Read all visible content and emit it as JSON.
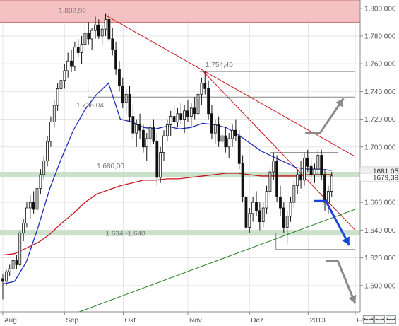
{
  "chart_data": {
    "type": "candlestick",
    "title": "",
    "xlabel": "",
    "ylabel": "",
    "ylim": [
      1581,
      1806
    ],
    "y_ticks": [
      "1.800,000",
      "1.780,000",
      "1.760,000",
      "1.740,000",
      "1.720,000",
      "1.700,000",
      "1.680,000",
      "1.660,000",
      "1.640,000",
      "1.620,000",
      "1.600,000"
    ],
    "y_tick_values": [
      1800,
      1780,
      1760,
      1740,
      1720,
      1700,
      1680,
      1660,
      1640,
      1620,
      1600
    ],
    "x_range": [
      0,
      120
    ],
    "x_ticks": [
      {
        "label": "Aug",
        "x": 0
      },
      {
        "label": "Sep",
        "x": 21
      },
      {
        "label": "Okt",
        "x": 41
      },
      {
        "label": "Nov",
        "x": 63
      },
      {
        "label": "Dez",
        "x": 84
      },
      {
        "label": "2013",
        "x": 104
      },
      {
        "label": "Feb",
        "x": 120
      }
    ],
    "grid": true,
    "current_price_labels": [
      "1681,05",
      "1679,39"
    ],
    "current_price_values": [
      1681.05,
      1679.39
    ],
    "colors": {
      "candle": "#111111",
      "moving_average_blue": "#1f2db8",
      "moving_average_red": "#c8161c",
      "resistance_lines": "#c8161c",
      "support_line": "#1a7a1a",
      "zone_top": "#f4c2c2",
      "zone_green": "#c9e0c9",
      "arrow_up": "#8a8a8a",
      "arrow_down_blue": "#1a44d8",
      "arrow_down_gray": "#8a8a8a"
    },
    "zones": [
      {
        "label": "1.802,92",
        "y_from": 1790,
        "y_to": 1806,
        "color": "#f4c2c2"
      },
      {
        "label": "1.680,00",
        "y_from": 1678,
        "y_to": 1682,
        "color": "#c9e0c9"
      },
      {
        "label": "1.634 -1.640",
        "y_from": 1636,
        "y_to": 1640,
        "color": "#c9e0c9"
      }
    ],
    "level_lines": [
      {
        "label": "1.754,40",
        "y": 1754.4,
        "x_from": 67,
        "x_to": 120
      },
      {
        "label": "1.736,04",
        "y": 1736,
        "x_from": 29,
        "x_to": 120
      },
      {
        "label": "",
        "y": 1696,
        "x_from": 91,
        "x_to": 114
      },
      {
        "label": "",
        "y": 1626,
        "x_from": 93,
        "x_to": 120
      }
    ],
    "trend_lines": [
      {
        "name": "resistance-long",
        "x1": 35,
        "y1": 1795,
        "x2": 120,
        "y2": 1693,
        "color": "#c8161c"
      },
      {
        "name": "resistance-steep",
        "x1": 68,
        "y1": 1755,
        "x2": 120,
        "y2": 1640,
        "color": "#c8161c"
      },
      {
        "name": "support-green",
        "x1": 26,
        "y1": 1581,
        "x2": 120,
        "y2": 1655,
        "color": "#1a7a1a"
      }
    ],
    "ma_blue": [
      [
        0,
        1601
      ],
      [
        4,
        1603
      ],
      [
        8,
        1617
      ],
      [
        12,
        1642
      ],
      [
        16,
        1670
      ],
      [
        20,
        1692
      ],
      [
        24,
        1712
      ],
      [
        28,
        1727
      ],
      [
        32,
        1738
      ],
      [
        36,
        1746
      ],
      [
        40,
        1720
      ],
      [
        44,
        1718
      ],
      [
        48,
        1714
      ],
      [
        52,
        1713
      ],
      [
        56,
        1715
      ],
      [
        60,
        1713
      ],
      [
        64,
        1714
      ],
      [
        68,
        1717
      ],
      [
        72,
        1716
      ],
      [
        76,
        1714
      ],
      [
        80,
        1709
      ],
      [
        84,
        1703
      ],
      [
        88,
        1697
      ],
      [
        92,
        1693
      ],
      [
        96,
        1689
      ],
      [
        100,
        1685
      ],
      [
        104,
        1684
      ],
      [
        108,
        1684
      ],
      [
        112,
        1683
      ]
    ],
    "ma_red": [
      [
        0,
        1622
      ],
      [
        4,
        1623
      ],
      [
        8,
        1627
      ],
      [
        12,
        1631
      ],
      [
        16,
        1637
      ],
      [
        20,
        1645
      ],
      [
        24,
        1652
      ],
      [
        28,
        1660
      ],
      [
        32,
        1666
      ],
      [
        36,
        1669
      ],
      [
        40,
        1672
      ],
      [
        44,
        1674
      ],
      [
        48,
        1676
      ],
      [
        52,
        1676
      ],
      [
        56,
        1677
      ],
      [
        60,
        1677
      ],
      [
        64,
        1678
      ],
      [
        68,
        1679
      ],
      [
        72,
        1680
      ],
      [
        76,
        1681
      ],
      [
        80,
        1681
      ],
      [
        84,
        1680
      ],
      [
        88,
        1679
      ],
      [
        92,
        1679
      ],
      [
        96,
        1679
      ],
      [
        100,
        1679
      ],
      [
        104,
        1680
      ],
      [
        108,
        1680
      ],
      [
        112,
        1680
      ]
    ],
    "candles_ohlc": [
      [
        1605,
        1608,
        1590,
        1603
      ],
      [
        1603,
        1612,
        1600,
        1610
      ],
      [
        1610,
        1615,
        1607,
        1612
      ],
      [
        1612,
        1620,
        1608,
        1618
      ],
      [
        1618,
        1622,
        1612,
        1615
      ],
      [
        1615,
        1640,
        1614,
        1638
      ],
      [
        1638,
        1648,
        1632,
        1645
      ],
      [
        1645,
        1660,
        1642,
        1656
      ],
      [
        1656,
        1665,
        1648,
        1660
      ],
      [
        1660,
        1668,
        1652,
        1655
      ],
      [
        1655,
        1672,
        1652,
        1670
      ],
      [
        1670,
        1684,
        1666,
        1680
      ],
      [
        1680,
        1694,
        1676,
        1690
      ],
      [
        1690,
        1708,
        1686,
        1704
      ],
      [
        1704,
        1722,
        1700,
        1718
      ],
      [
        1718,
        1734,
        1714,
        1730
      ],
      [
        1730,
        1746,
        1726,
        1742
      ],
      [
        1742,
        1752,
        1736,
        1748
      ],
      [
        1748,
        1760,
        1742,
        1755
      ],
      [
        1755,
        1768,
        1750,
        1762
      ],
      [
        1762,
        1770,
        1754,
        1758
      ],
      [
        1758,
        1776,
        1755,
        1772
      ],
      [
        1772,
        1778,
        1765,
        1768
      ],
      [
        1768,
        1780,
        1760,
        1774
      ],
      [
        1774,
        1788,
        1770,
        1782
      ],
      [
        1782,
        1790,
        1774,
        1778
      ],
      [
        1778,
        1786,
        1770,
        1784
      ],
      [
        1784,
        1794,
        1778,
        1788
      ],
      [
        1788,
        1792,
        1778,
        1780
      ],
      [
        1780,
        1788,
        1774,
        1785
      ],
      [
        1785,
        1796,
        1780,
        1792
      ],
      [
        1792,
        1796,
        1776,
        1778
      ],
      [
        1778,
        1786,
        1766,
        1770
      ],
      [
        1770,
        1776,
        1752,
        1756
      ],
      [
        1756,
        1762,
        1740,
        1744
      ],
      [
        1744,
        1750,
        1728,
        1732
      ],
      [
        1732,
        1742,
        1724,
        1738
      ],
      [
        1738,
        1744,
        1718,
        1722
      ],
      [
        1722,
        1730,
        1706,
        1710
      ],
      [
        1710,
        1720,
        1700,
        1716
      ],
      [
        1716,
        1724,
        1706,
        1712
      ],
      [
        1712,
        1716,
        1696,
        1700
      ],
      [
        1700,
        1710,
        1690,
        1706
      ],
      [
        1706,
        1718,
        1700,
        1714
      ],
      [
        1714,
        1720,
        1702,
        1704
      ],
      [
        1704,
        1710,
        1672,
        1678
      ],
      [
        1678,
        1700,
        1674,
        1696
      ],
      [
        1696,
        1712,
        1690,
        1708
      ],
      [
        1708,
        1720,
        1704,
        1716
      ],
      [
        1716,
        1726,
        1708,
        1722
      ],
      [
        1722,
        1730,
        1712,
        1718
      ],
      [
        1718,
        1728,
        1714,
        1724
      ],
      [
        1724,
        1732,
        1716,
        1720
      ],
      [
        1720,
        1730,
        1710,
        1726
      ],
      [
        1726,
        1734,
        1718,
        1722
      ],
      [
        1722,
        1732,
        1714,
        1728
      ],
      [
        1728,
        1736,
        1720,
        1724
      ],
      [
        1724,
        1742,
        1722,
        1738
      ],
      [
        1738,
        1750,
        1730,
        1746
      ],
      [
        1746,
        1755,
        1738,
        1742
      ],
      [
        1742,
        1748,
        1720,
        1724
      ],
      [
        1724,
        1730,
        1706,
        1710
      ],
      [
        1710,
        1720,
        1702,
        1716
      ],
      [
        1716,
        1722,
        1700,
        1704
      ],
      [
        1704,
        1712,
        1694,
        1708
      ],
      [
        1708,
        1714,
        1696,
        1700
      ],
      [
        1700,
        1710,
        1692,
        1706
      ],
      [
        1706,
        1716,
        1700,
        1712
      ],
      [
        1712,
        1720,
        1704,
        1708
      ],
      [
        1708,
        1712,
        1684,
        1688
      ],
      [
        1688,
        1694,
        1660,
        1664
      ],
      [
        1664,
        1670,
        1636,
        1642
      ],
      [
        1642,
        1656,
        1638,
        1652
      ],
      [
        1652,
        1664,
        1646,
        1660
      ],
      [
        1660,
        1668,
        1650,
        1654
      ],
      [
        1654,
        1660,
        1640,
        1646
      ],
      [
        1646,
        1660,
        1642,
        1656
      ],
      [
        1656,
        1672,
        1652,
        1668
      ],
      [
        1668,
        1686,
        1664,
        1682
      ],
      [
        1682,
        1696,
        1676,
        1690
      ],
      [
        1690,
        1694,
        1660,
        1664
      ],
      [
        1664,
        1672,
        1650,
        1656
      ],
      [
        1656,
        1660,
        1638,
        1642
      ],
      [
        1642,
        1654,
        1630,
        1650
      ],
      [
        1650,
        1664,
        1646,
        1660
      ],
      [
        1660,
        1676,
        1656,
        1672
      ],
      [
        1672,
        1684,
        1666,
        1680
      ],
      [
        1680,
        1690,
        1670,
        1676
      ],
      [
        1676,
        1696,
        1672,
        1692
      ],
      [
        1692,
        1698,
        1682,
        1686
      ],
      [
        1686,
        1692,
        1674,
        1680
      ],
      [
        1680,
        1688,
        1674,
        1684
      ],
      [
        1684,
        1698,
        1680,
        1694
      ],
      [
        1694,
        1698,
        1676,
        1680
      ],
      [
        1680,
        1684,
        1654,
        1660
      ],
      [
        1660,
        1672,
        1652,
        1668
      ],
      [
        1668,
        1682,
        1664,
        1679
      ]
    ],
    "arrows": [
      {
        "name": "arrow-up-gray",
        "points": [
          [
            103,
            1710
          ],
          [
            108,
            1710
          ],
          [
            116,
            1735
          ]
        ],
        "color": "#8a8a8a"
      },
      {
        "name": "arrow-down-blue",
        "points": [
          [
            106,
            1661
          ],
          [
            110,
            1661
          ],
          [
            118,
            1629
          ]
        ],
        "color": "#1a44d8"
      },
      {
        "name": "arrow-down-gray",
        "points": [
          [
            110,
            1618
          ],
          [
            114,
            1618
          ],
          [
            120,
            1587
          ]
        ],
        "color": "#8a8a8a"
      }
    ]
  },
  "scroll_controls": [
    "←→",
    "←→",
    "←→"
  ]
}
